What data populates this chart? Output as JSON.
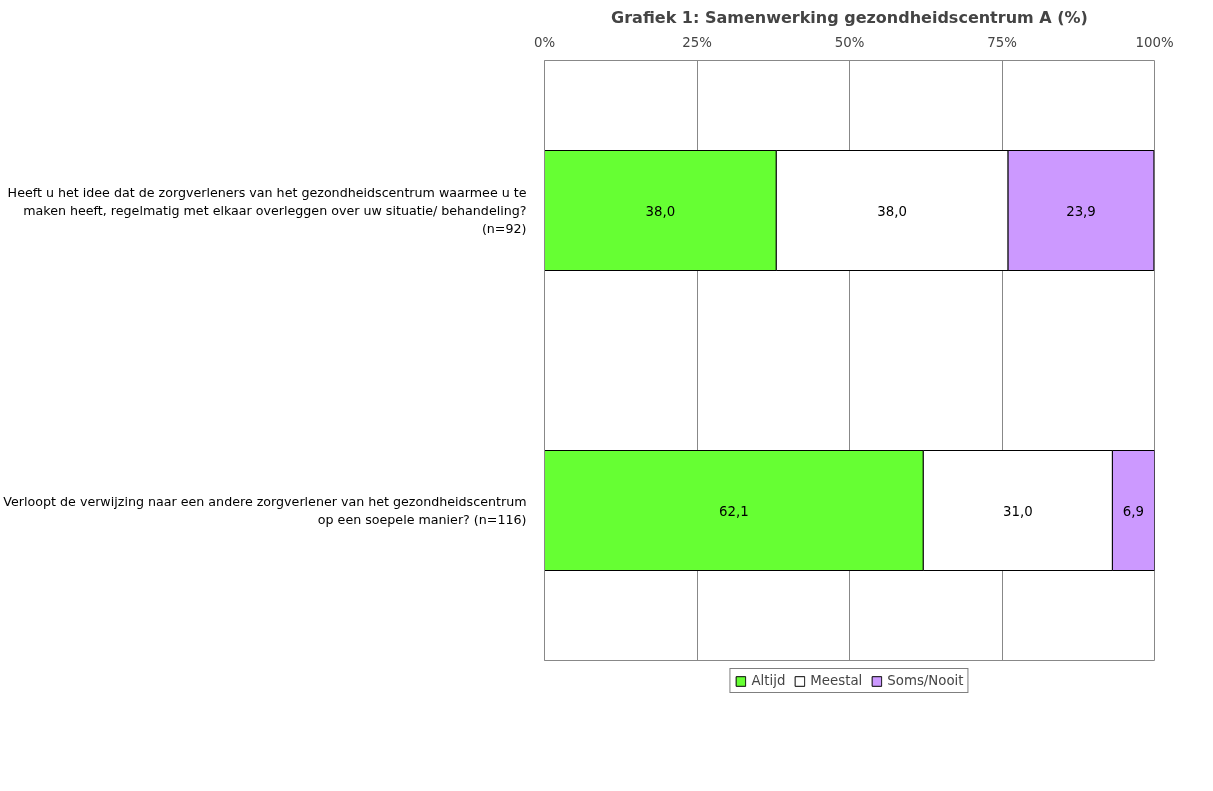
{
  "chart_data": {
    "type": "bar",
    "orientation": "horizontal",
    "stacked": true,
    "title": "Grafiek 1: Samenwerking gezondheidscentrum A (%)",
    "categories": [
      "Heeft u het idee dat de zorgverleners van het gezondheidscentrum waarmee u te maken heeft, regelmatig met elkaar overleggen over uw situatie/ behandeling? (n=92)",
      "Verloopt de verwijzing naar een andere zorgverlener van het gezondheidscentrum op een soepele manier? (n=116)"
    ],
    "series": [
      {
        "name": "Altijd",
        "color": "#66ff33",
        "values": [
          38.0,
          62.1
        ],
        "value_labels": [
          "38,0",
          "62,1"
        ]
      },
      {
        "name": "Meestal",
        "color": "#ffffff",
        "values": [
          38.0,
          31.0
        ],
        "value_labels": [
          "38,0",
          "31,0"
        ]
      },
      {
        "name": "Soms/Nooit",
        "color": "#cc99ff",
        "values": [
          23.9,
          6.9
        ],
        "value_labels": [
          "23,9",
          "6,9"
        ]
      }
    ],
    "xlim": [
      0,
      100
    ],
    "xticks": [
      {
        "value": 0,
        "label": "0%"
      },
      {
        "value": 25,
        "label": "25%"
      },
      {
        "value": 50,
        "label": "50%"
      },
      {
        "value": 75,
        "label": "75%"
      },
      {
        "value": 100,
        "label": "100%"
      }
    ],
    "grid": "x",
    "legend": "bottom"
  }
}
